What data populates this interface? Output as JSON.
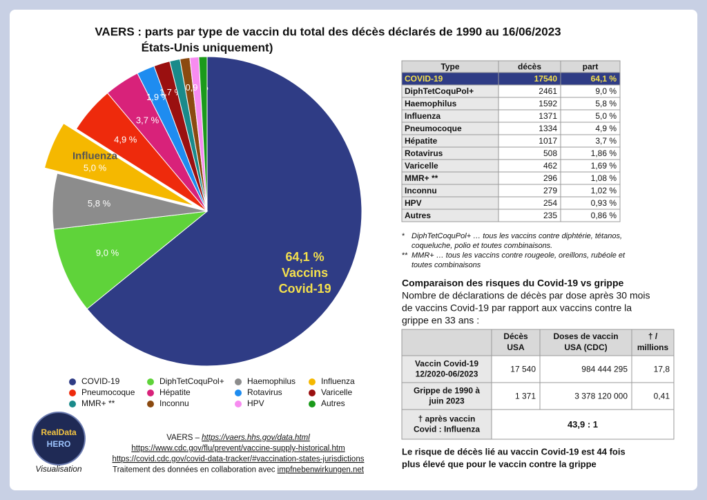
{
  "chart_data": {
    "type": "pie",
    "title": "VAERS : parts par type de vaccin du total des décès déclarés de 1990 au 16/06/2023",
    "subtitle": "États-Unis uniquement)",
    "categories": [
      "COVID-19",
      "DiphTetCoquPol+",
      "Haemophilus",
      "Influenza",
      "Pneumocoque",
      "Hépatite",
      "Rotavirus",
      "Varicelle",
      "MMR+ **",
      "Inconnu",
      "HPV",
      "Autres"
    ],
    "values": [
      64.1,
      9.0,
      5.8,
      5.0,
      4.9,
      3.7,
      1.86,
      1.69,
      1.08,
      1.02,
      0.93,
      0.86
    ],
    "value_labels": [
      "64,1 %",
      "9,0 %",
      "5,8 %",
      "5,0 %",
      "4,9 %",
      "3,7 %",
      "1,9 %",
      "1,7 %",
      null,
      null,
      "0,9 %",
      null
    ],
    "colors": [
      "#2f3c85",
      "#5fd33a",
      "#8c8c8c",
      "#f5b800",
      "#ee2a0c",
      "#d8227a",
      "#1e8cf0",
      "#9a1010",
      "#1a8a8a",
      "#8b4a10",
      "#f78cf0",
      "#1b9a1b"
    ],
    "center_label": [
      "Vaccins",
      "Covid-19"
    ],
    "exploded_label": "Influenza"
  },
  "table": {
    "header": [
      "Type",
      "décès",
      "part"
    ],
    "rows": [
      [
        "COVID-19",
        "17540",
        "64,1 %"
      ],
      [
        "DiphTetCoquPol+",
        "2461",
        "9,0 %"
      ],
      [
        "Haemophilus",
        "1592",
        "5,8 %"
      ],
      [
        "Influenza",
        "1371",
        "5,0 %"
      ],
      [
        "Pneumocoque",
        "1334",
        "4,9 %"
      ],
      [
        "Hépatite",
        "1017",
        "3,7 %"
      ],
      [
        "Rotavirus",
        "508",
        "1,86 %"
      ],
      [
        "Varicelle",
        "462",
        "1,69 %"
      ],
      [
        "MMR+ **",
        "296",
        "1,08 %"
      ],
      [
        "Inconnu",
        "279",
        "1,02 %"
      ],
      [
        "HPV",
        "254",
        "0,93 %"
      ],
      [
        "Autres",
        "235",
        "0,86 %"
      ]
    ]
  },
  "notes": [
    {
      "mark": "*",
      "lines": [
        "DiphTetCoquPol+ … tous les vaccins contre diphtérie, tétanos,",
        "coqueluche, polio et toutes combinaisons."
      ]
    },
    {
      "mark": "**",
      "lines": [
        "MMR+ … tous les vaccins contre rougeole, oreillons, rubéole et",
        "toutes combinaisons"
      ]
    }
  ],
  "comparison": {
    "title": "Comparaison des risques du Covid-19 vs grippe",
    "text": [
      "Nombre de déclarations de décès par dose après 30 mois",
      "de vaccins Covid-19 par rapport aux vaccins contre la",
      "grippe en 33 ans :"
    ],
    "header": [
      [
        "Décès",
        "USA"
      ],
      [
        "Doses de vaccin",
        "USA (CDC)"
      ],
      [
        "† /",
        "millions"
      ]
    ],
    "rows": [
      {
        "label": [
          "Vaccin Covid-19",
          "12/2020-06/2023"
        ],
        "cells": [
          "17 540",
          "984 444 295",
          "17,8"
        ]
      },
      {
        "label": [
          "Grippe de 1990 à",
          "juin 2023"
        ],
        "cells": [
          "1 371",
          "3 378 120 000",
          "0,41"
        ]
      }
    ],
    "ratio_label": [
      "† après vaccin",
      "Covid : Influenza"
    ],
    "ratio": "43,9 : 1",
    "conclusion": [
      "Le risque de décès lié au vaccin Covid-19 est 44 fois",
      "plus élevé que pour le vaccin contre la grippe"
    ]
  },
  "sources": [
    {
      "text": "VAERS – ",
      "link": "https://vaers.hhs.gov/data.html"
    },
    {
      "link": "https://www.cdc.gov/flu/prevent/vaccine-supply-historical.htm"
    },
    {
      "link": "https://covid.cdc.gov/covid-data-tracker/#vaccination-states-jurisdictions"
    },
    {
      "text": "Traitement des données en collaboration avec ",
      "link": "impfnebenwirkungen.net"
    }
  ],
  "logo": {
    "lines": [
      "RealData",
      "HERO"
    ],
    "caption": "Visualisation"
  }
}
